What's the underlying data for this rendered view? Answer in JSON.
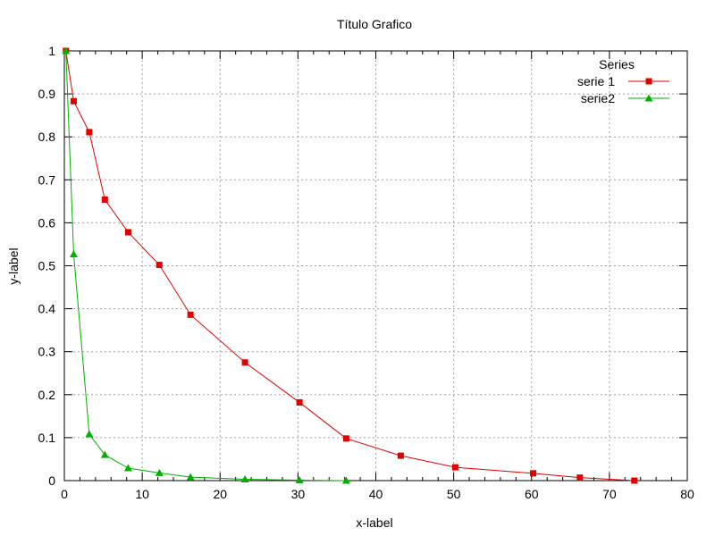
{
  "chart_data": {
    "type": "line",
    "title": "Título Grafico",
    "xlabel": "x-label",
    "ylabel": "y-label",
    "xlim": [
      0,
      80
    ],
    "ylim": [
      0,
      1
    ],
    "x_ticks": [
      "0",
      "10",
      "20",
      "30",
      "40",
      "50",
      "60",
      "70",
      "80"
    ],
    "y_ticks": [
      "0",
      "0.1",
      "0.2",
      "0.3",
      "0.4",
      "0.5",
      "0.6",
      "0.7",
      "0.8",
      "0.9",
      "1"
    ],
    "grid": true,
    "legend": {
      "title": "Series",
      "placement": "top-right"
    },
    "series": [
      {
        "name": "serie 1",
        "color": "#e00000",
        "marker": "square",
        "x": [
          0.2,
          1.2,
          3.2,
          5.2,
          8.2,
          12.2,
          16.2,
          23.2,
          30.2,
          36.2,
          43.2,
          50.2,
          60.2,
          66.2,
          73.2
        ],
        "y": [
          1.0,
          0.883,
          0.811,
          0.654,
          0.578,
          0.502,
          0.386,
          0.275,
          0.182,
          0.098,
          0.058,
          0.031,
          0.017,
          0.007,
          0.0
        ]
      },
      {
        "name": "serie2",
        "color": "#00b000",
        "marker": "triangle",
        "x": [
          0.2,
          1.2,
          3.2,
          5.2,
          8.2,
          12.2,
          16.2,
          23.2,
          30.2,
          36.2
        ],
        "y": [
          1.0,
          0.527,
          0.108,
          0.06,
          0.029,
          0.018,
          0.008,
          0.003,
          0.001,
          0.0
        ]
      }
    ]
  }
}
